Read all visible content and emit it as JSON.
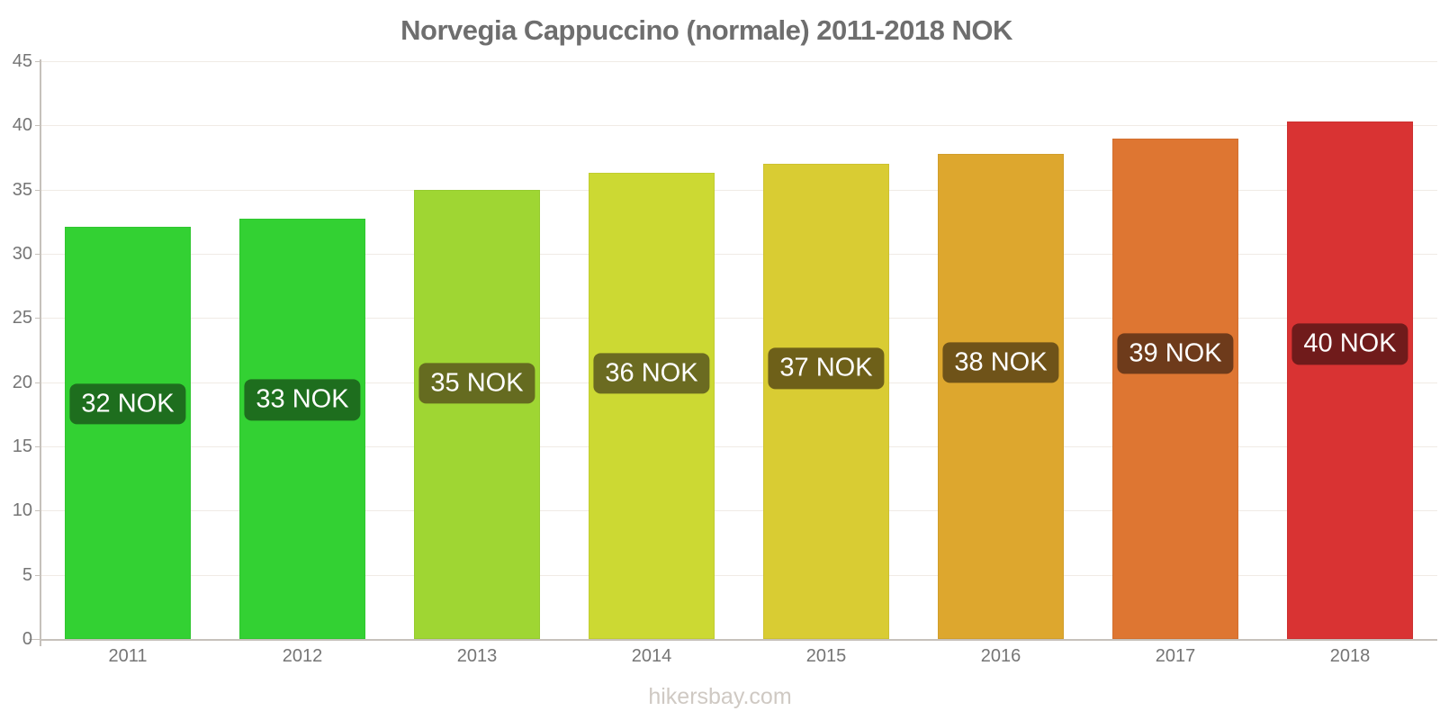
{
  "title": "Norvegia Cappuccino (normale) 2011-2018 NOK",
  "watermark": "hikersbay.com",
  "colors": {
    "title_text": "#6e6e6e",
    "axis_text": "#757575",
    "axis_line": "#c6c1bb",
    "gridline": "#f0ebe5",
    "badge_text": "#ffffff",
    "background": "#ffffff",
    "watermark_text": "#cfc9c3"
  },
  "chart_data": {
    "type": "bar",
    "title": "Norvegia Cappuccino (normale) 2011-2018 NOK",
    "categories": [
      "2011",
      "2012",
      "2013",
      "2014",
      "2015",
      "2016",
      "2017",
      "2018"
    ],
    "values": [
      32.1,
      32.7,
      35.0,
      36.3,
      37.0,
      37.8,
      39.0,
      40.3
    ],
    "bar_labels": [
      "32 NOK",
      "33 NOK",
      "35 NOK",
      "36 NOK",
      "37 NOK",
      "38 NOK",
      "39 NOK",
      "40 NOK"
    ],
    "bar_colors": [
      "#33d133",
      "#33d133",
      "#9fd633",
      "#ccd933",
      "#d9cc33",
      "#dda72e",
      "#de7632",
      "#d93333"
    ],
    "label_bg_colors": [
      "#1e6e1e",
      "#1e6e1e",
      "#656b20",
      "#6b6b21",
      "#6e6019",
      "#6f5319",
      "#6e3b1b",
      "#701b1b"
    ],
    "xlabel": "",
    "ylabel": "",
    "ylim": [
      0,
      45
    ],
    "yticks": [
      0,
      5,
      10,
      15,
      20,
      25,
      30,
      35,
      40,
      45
    ],
    "grid": true,
    "legend": false
  }
}
